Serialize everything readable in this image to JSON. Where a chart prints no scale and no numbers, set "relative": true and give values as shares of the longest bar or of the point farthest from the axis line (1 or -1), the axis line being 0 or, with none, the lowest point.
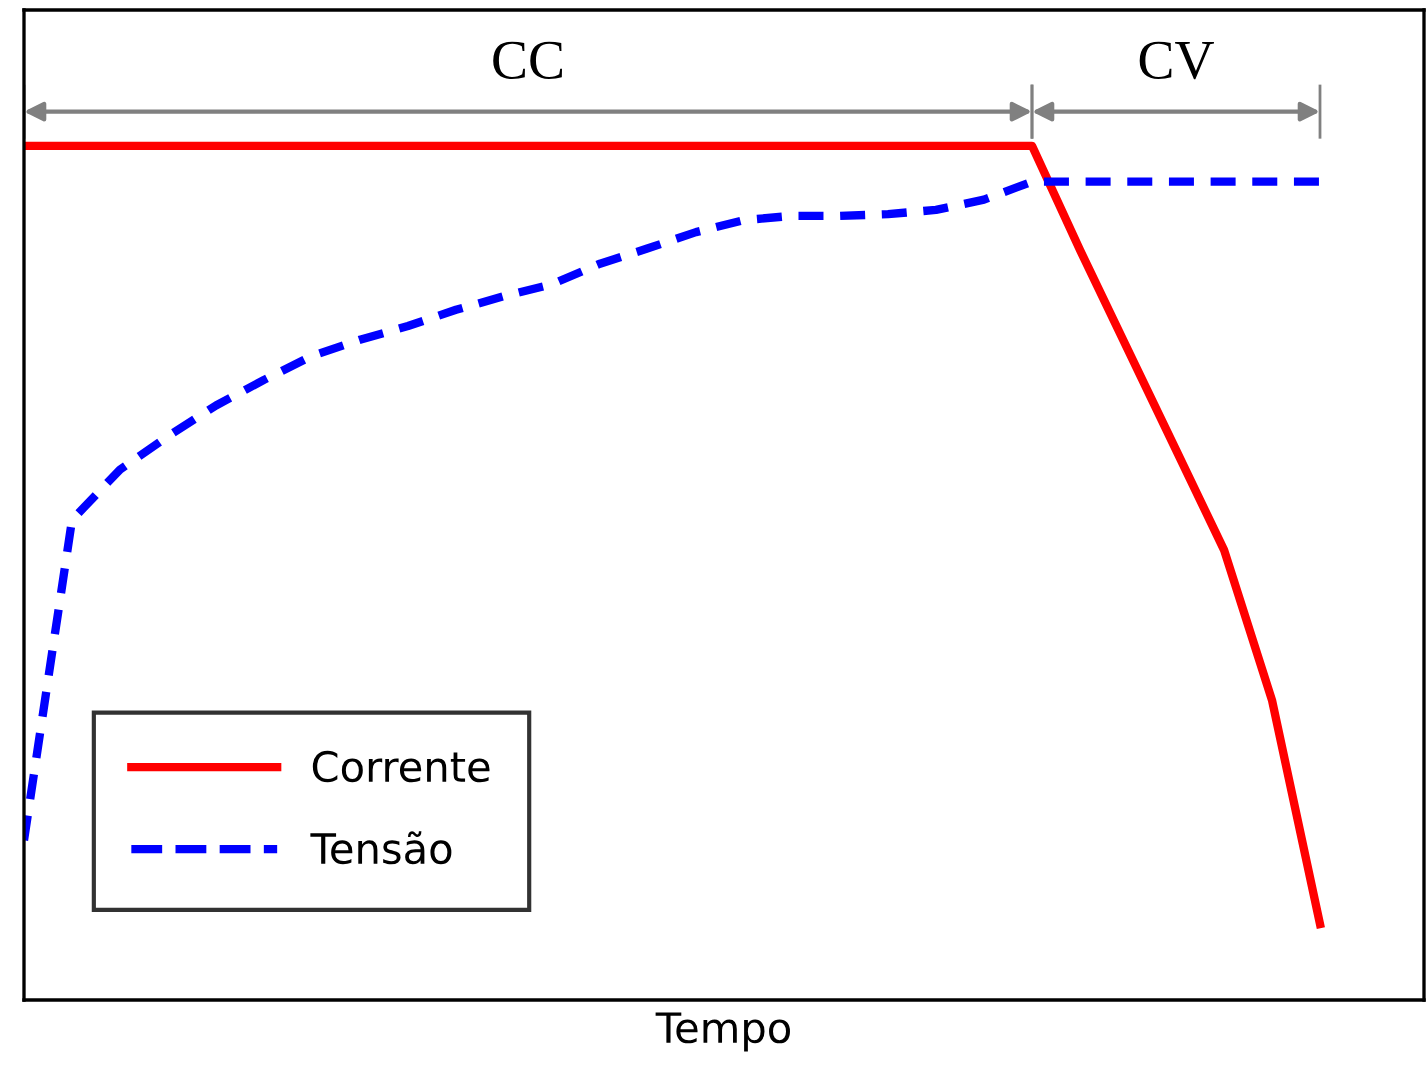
{
  "chart_data": {
    "type": "line",
    "relative": true,
    "xlabel": "Tempo",
    "legend": "bottom left",
    "categories": [
      null,
      null,
      null,
      null,
      null,
      null,
      null,
      null,
      null,
      null,
      null,
      null,
      null,
      null,
      null,
      null,
      null,
      null,
      null,
      null,
      null,
      null,
      null,
      null,
      null,
      null,
      null,
      null
    ],
    "series": [
      {
        "name": "Corrente",
        "color": "#ff0000",
        "line_style": "solid",
        "values": [
          1,
          1,
          1,
          1,
          1,
          1,
          1,
          1,
          1,
          1,
          1,
          1,
          1,
          1,
          1,
          1,
          1,
          1,
          1,
          1,
          1,
          1,
          0.878,
          0.761,
          0.644,
          0.527,
          0.351,
          0.089
        ]
      },
      {
        "name": "Tensão",
        "color": "#0000ff",
        "line_style": "dashed",
        "values": [
          0.187,
          0.562,
          0.621,
          0.66,
          0.696,
          0.726,
          0.754,
          0.773,
          0.789,
          0.808,
          0.824,
          0.838,
          0.862,
          0.88,
          0.899,
          0.913,
          0.918,
          0.918,
          0.92,
          0.925,
          0.937,
          0.958,
          0.958,
          0.958,
          0.958,
          0.958,
          0.958,
          0.958
        ]
      }
    ],
    "annotations": [
      "CC",
      "CV"
    ]
  }
}
